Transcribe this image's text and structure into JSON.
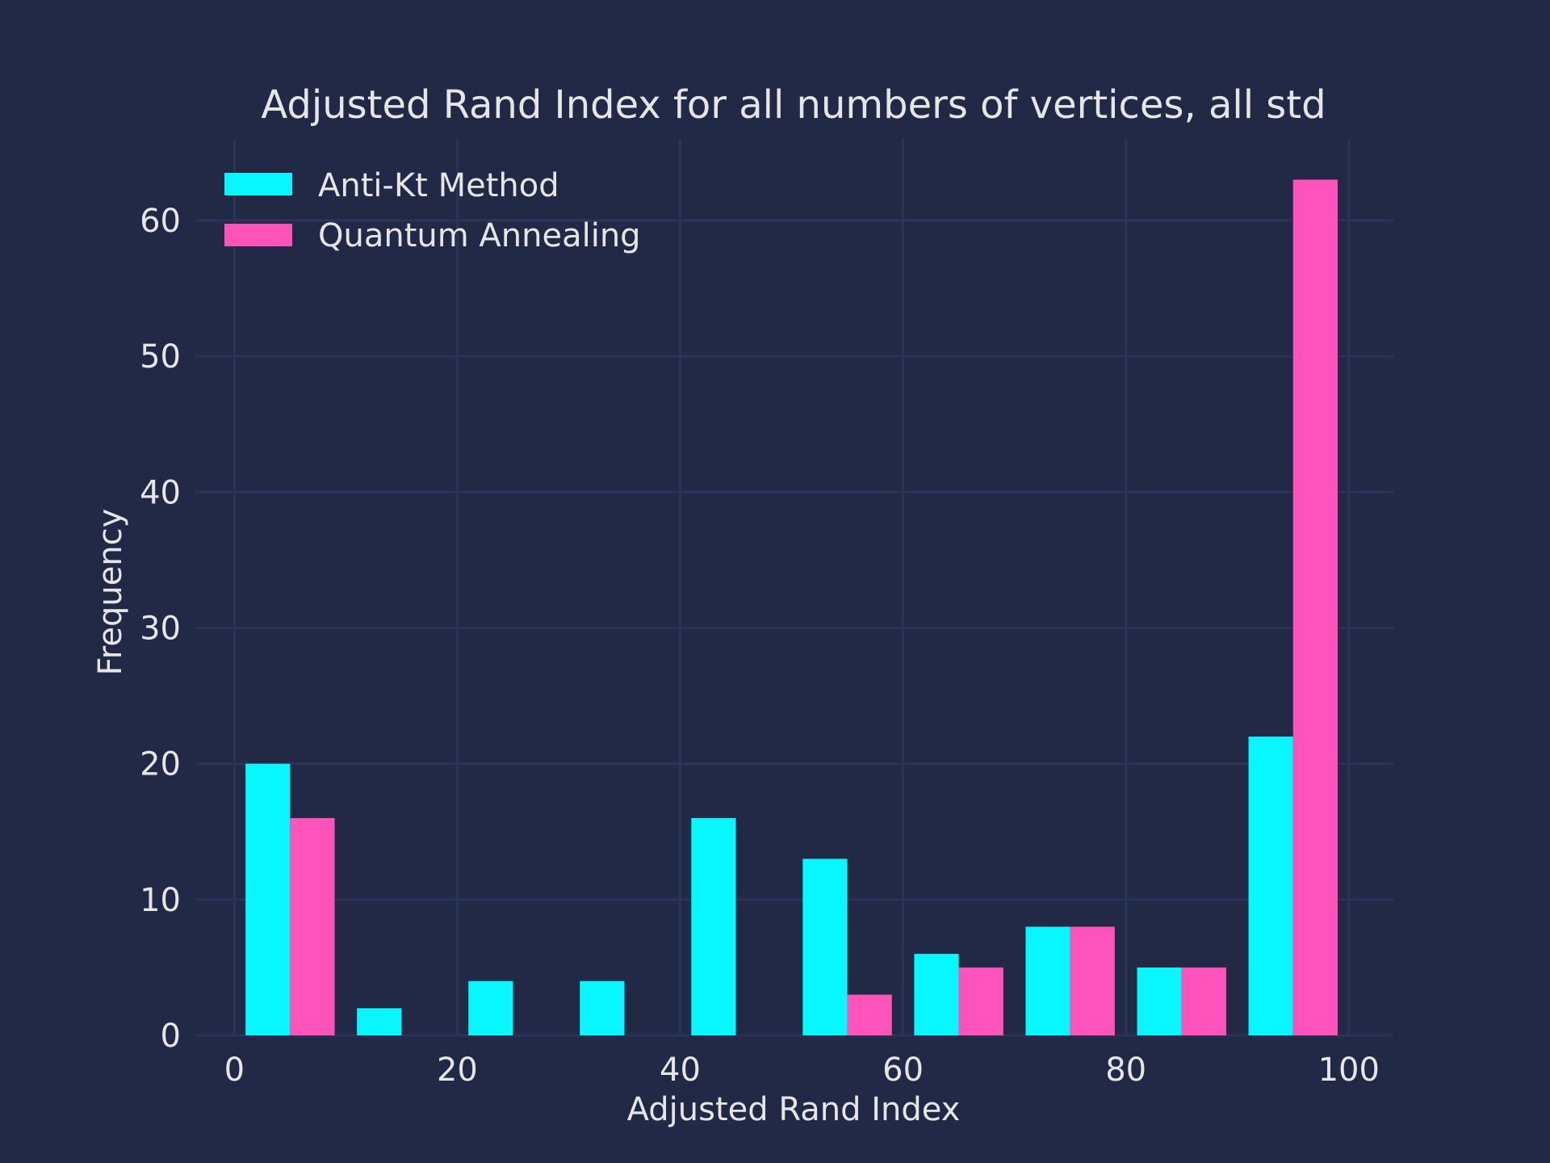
{
  "chart_data": {
    "type": "bar",
    "title": "Adjusted Rand Index for all numbers of vertices, all std",
    "xlabel": "Adjusted Rand Index",
    "ylabel": "Frequency",
    "xlim": [
      -3.5,
      104
    ],
    "ylim": [
      0,
      66
    ],
    "xticks": [
      0,
      20,
      40,
      60,
      80,
      100
    ],
    "yticks": [
      0,
      10,
      20,
      30,
      40,
      50,
      60
    ],
    "grid": true,
    "legend_position": "top-left",
    "bin_edges": [
      1,
      11,
      21,
      31,
      41,
      51,
      61,
      71,
      81,
      91,
      101
    ],
    "series": [
      {
        "name": "Anti-Kt Method",
        "color": "#08f7fe",
        "values": [
          20,
          2,
          4,
          4,
          16,
          13,
          6,
          8,
          5,
          22
        ]
      },
      {
        "name": "Quantum Annealing",
        "color": "#fe53bb",
        "values": [
          16,
          0,
          0,
          0,
          0,
          3,
          5,
          8,
          5,
          63
        ]
      }
    ]
  }
}
